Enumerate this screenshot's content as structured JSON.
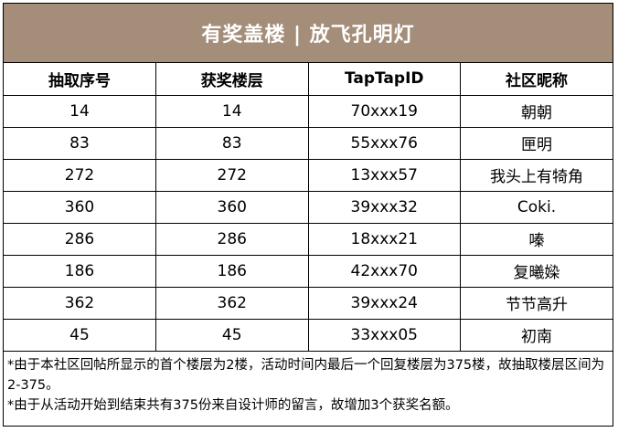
{
  "title": "有奖盖楼 | 放飞孔明灯",
  "columns": [
    "抽取序号",
    "获奖楼层",
    "TapTapID",
    "社区昵称"
  ],
  "rows": [
    [
      "14",
      "14",
      "70xxx19",
      "朝朝"
    ],
    [
      "83",
      "83",
      "55xxx76",
      "匣明"
    ],
    [
      "272",
      "272",
      "13xxx57",
      "我头上有犄角"
    ],
    [
      "360",
      "360",
      "39xxx32",
      "Coki."
    ],
    [
      "286",
      "286",
      "18xxx21",
      "嗪"
    ],
    [
      "186",
      "186",
      "42xxx70",
      "复曦媣"
    ],
    [
      "362",
      "362",
      "39xxx24",
      "节节高升"
    ],
    [
      "45",
      "45",
      "33xxx05",
      "初南"
    ]
  ],
  "notes": [
    "*由于本社区回帖所显示的首个楼层为2楼，活动时间内最后一个回复楼层为375楼，故抽取楼层区间为2-375。",
    "*由于从活动开始到结束共有375份来自设计师的留言，故增加3个获奖名额。"
  ],
  "colors": {
    "header_bg": "#a48e79",
    "header_text": "#ffffff"
  }
}
